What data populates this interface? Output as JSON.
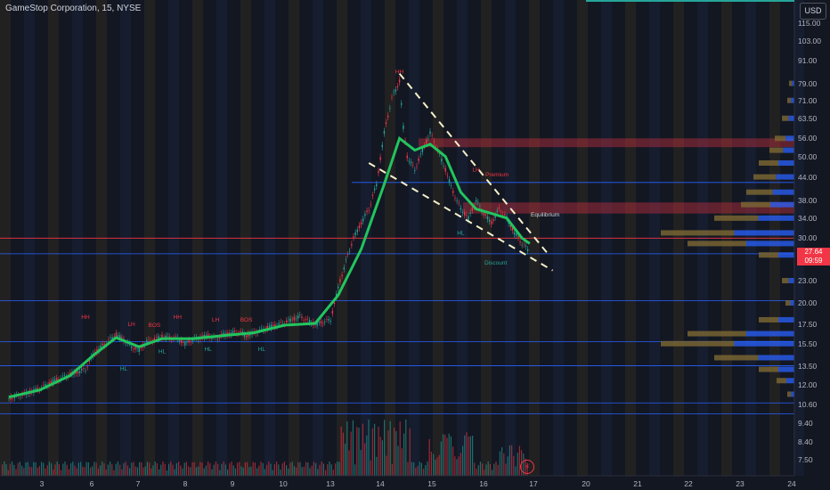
{
  "header": {
    "title": "GameStop Corporation, 15, NYSE",
    "currency": "USD"
  },
  "price_tag": {
    "price": "27.64",
    "countdown": "09:59"
  },
  "chart_data": {
    "type": "candlestick",
    "title": "GameStop Corporation, 15, NYSE",
    "y_axis": {
      "scale": "log",
      "range": [
        7,
        125
      ],
      "tick_labels": [
        "115.00",
        "103.00",
        "91.00",
        "79.00",
        "71.00",
        "63.50",
        "56.00",
        "50.00",
        "44.00",
        "38.00",
        "34.00",
        "30.00",
        "23.00",
        "20.00",
        "17.50",
        "15.50",
        "13.50",
        "12.00",
        "10.60",
        "9.40",
        "8.40",
        "7.50"
      ]
    },
    "x_axis": {
      "tick_labels": [
        "3",
        "6",
        "7",
        "8",
        "9",
        "10",
        "13",
        "14",
        "15",
        "16",
        "17",
        "20",
        "21",
        "22",
        "23",
        "24"
      ]
    },
    "price_path": [
      [
        0,
        11.0
      ],
      [
        2,
        11.3
      ],
      [
        4,
        11.7
      ],
      [
        6,
        12.3
      ],
      [
        8,
        12.8
      ],
      [
        10,
        13.2
      ],
      [
        11,
        14.5
      ],
      [
        13,
        15.8
      ],
      [
        14,
        16.4
      ],
      [
        15,
        15.9
      ],
      [
        16,
        15.2
      ],
      [
        17,
        14.9
      ],
      [
        18,
        15.7
      ],
      [
        20,
        16.2
      ],
      [
        22,
        16.0
      ],
      [
        23,
        15.5
      ],
      [
        24,
        15.9
      ],
      [
        26,
        16.3
      ],
      [
        27,
        16.0
      ],
      [
        28,
        16.4
      ],
      [
        30,
        16.7
      ],
      [
        31,
        16.3
      ],
      [
        32,
        16.6
      ],
      [
        34,
        17.2
      ],
      [
        36,
        17.7
      ],
      [
        38,
        18.4
      ],
      [
        39,
        17.9
      ],
      [
        40,
        17.5
      ],
      [
        42,
        18.0
      ],
      [
        43,
        22.0
      ],
      [
        44,
        26.0
      ],
      [
        45,
        30.0
      ],
      [
        46,
        33.0
      ],
      [
        47,
        36.0
      ],
      [
        48,
        42.0
      ],
      [
        49,
        58.0
      ],
      [
        50,
        72.0
      ],
      [
        51,
        80.0
      ],
      [
        51.5,
        60.0
      ],
      [
        52,
        50.0
      ],
      [
        53,
        46.0
      ],
      [
        54,
        52.0
      ],
      [
        55,
        58.0
      ],
      [
        56,
        52.0
      ],
      [
        57,
        46.0
      ],
      [
        58,
        40.0
      ],
      [
        59,
        36.0
      ],
      [
        60,
        34.0
      ],
      [
        61,
        38.0
      ],
      [
        62,
        35.0
      ],
      [
        63,
        33.0
      ],
      [
        64,
        36.0
      ],
      [
        65,
        34.0
      ],
      [
        66,
        31.0
      ],
      [
        67,
        29.0
      ],
      [
        68,
        27.64
      ]
    ],
    "ema_path": [
      [
        0,
        11.1
      ],
      [
        4,
        11.6
      ],
      [
        8,
        12.7
      ],
      [
        11,
        14.4
      ],
      [
        14,
        16.1
      ],
      [
        17,
        15.2
      ],
      [
        20,
        16.0
      ],
      [
        24,
        16.0
      ],
      [
        28,
        16.3
      ],
      [
        32,
        16.6
      ],
      [
        36,
        17.4
      ],
      [
        40,
        17.6
      ],
      [
        43,
        21.0
      ],
      [
        46,
        28.0
      ],
      [
        49,
        42.0
      ],
      [
        51,
        56.0
      ],
      [
        53,
        52.0
      ],
      [
        55,
        54.0
      ],
      [
        57,
        50.0
      ],
      [
        59,
        40.0
      ],
      [
        61,
        36.0
      ],
      [
        63,
        35.0
      ],
      [
        65,
        34.0
      ],
      [
        67,
        30.0
      ],
      [
        68,
        29.0
      ]
    ],
    "structure_labels": [
      {
        "text": "HH",
        "price": 18.1,
        "bar": 10
      },
      {
        "text": "HL",
        "price": 13.1,
        "bar": 15
      },
      {
        "text": "LH",
        "price": 17.3,
        "bar": 16
      },
      {
        "text": "BOS",
        "price": 17.2,
        "bar": 19
      },
      {
        "text": "HL",
        "price": 14.6,
        "bar": 20
      },
      {
        "text": "HH",
        "price": 18.1,
        "bar": 22
      },
      {
        "text": "LH",
        "price": 17.8,
        "bar": 27
      },
      {
        "text": "HL",
        "price": 14.8,
        "bar": 26
      },
      {
        "text": "BOS",
        "price": 17.8,
        "bar": 31
      },
      {
        "text": "HL",
        "price": 14.8,
        "bar": 33
      },
      {
        "text": "HH",
        "price": 84.0,
        "bar": 51
      },
      {
        "text": "LH",
        "price": 45.5,
        "bar": 61
      },
      {
        "text": "HL",
        "price": 30.6,
        "bar": 59
      }
    ],
    "zones": {
      "premium": "Premium",
      "equilibrium": "Equilibrium",
      "discount": "Discount"
    },
    "volume_profile": "right-side histogram",
    "legend": "none",
    "grid": false
  }
}
